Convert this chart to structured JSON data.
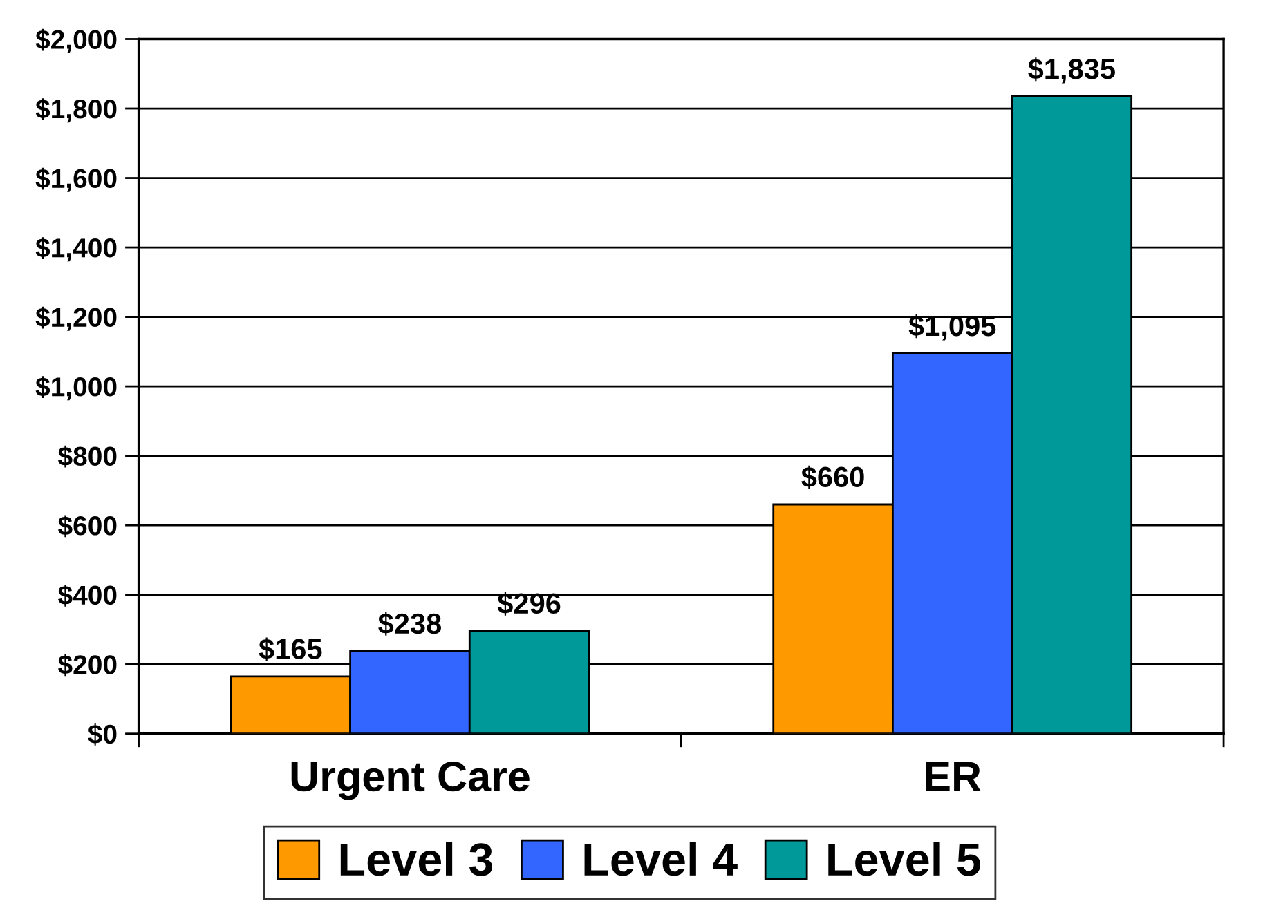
{
  "chart_data": {
    "type": "bar",
    "categories": [
      "Urgent Care",
      "ER"
    ],
    "series": [
      {
        "name": "Level 3",
        "color": "#ff9900",
        "values": [
          165,
          660
        ],
        "value_labels": [
          "$165",
          "$660"
        ]
      },
      {
        "name": "Level 4",
        "color": "#3366ff",
        "values": [
          238,
          1095
        ],
        "value_labels": [
          "$238",
          "$1,095"
        ]
      },
      {
        "name": "Level 5",
        "color": "#009999",
        "values": [
          296,
          1835
        ],
        "value_labels": [
          "$296",
          "$1,835"
        ]
      }
    ],
    "ylim": [
      0,
      2000
    ],
    "yticks": [
      {
        "value": 0,
        "label": "$0"
      },
      {
        "value": 200,
        "label": "$200"
      },
      {
        "value": 400,
        "label": "$400"
      },
      {
        "value": 600,
        "label": "$600"
      },
      {
        "value": 800,
        "label": "$800"
      },
      {
        "value": 1000,
        "label": "$1,000"
      },
      {
        "value": 1200,
        "label": "$1,200"
      },
      {
        "value": 1400,
        "label": "$1,400"
      },
      {
        "value": 1600,
        "label": "$1,600"
      },
      {
        "value": 1800,
        "label": "$1,800"
      },
      {
        "value": 2000,
        "label": "$2,000"
      }
    ],
    "grid": "y",
    "legend": "bottom"
  }
}
